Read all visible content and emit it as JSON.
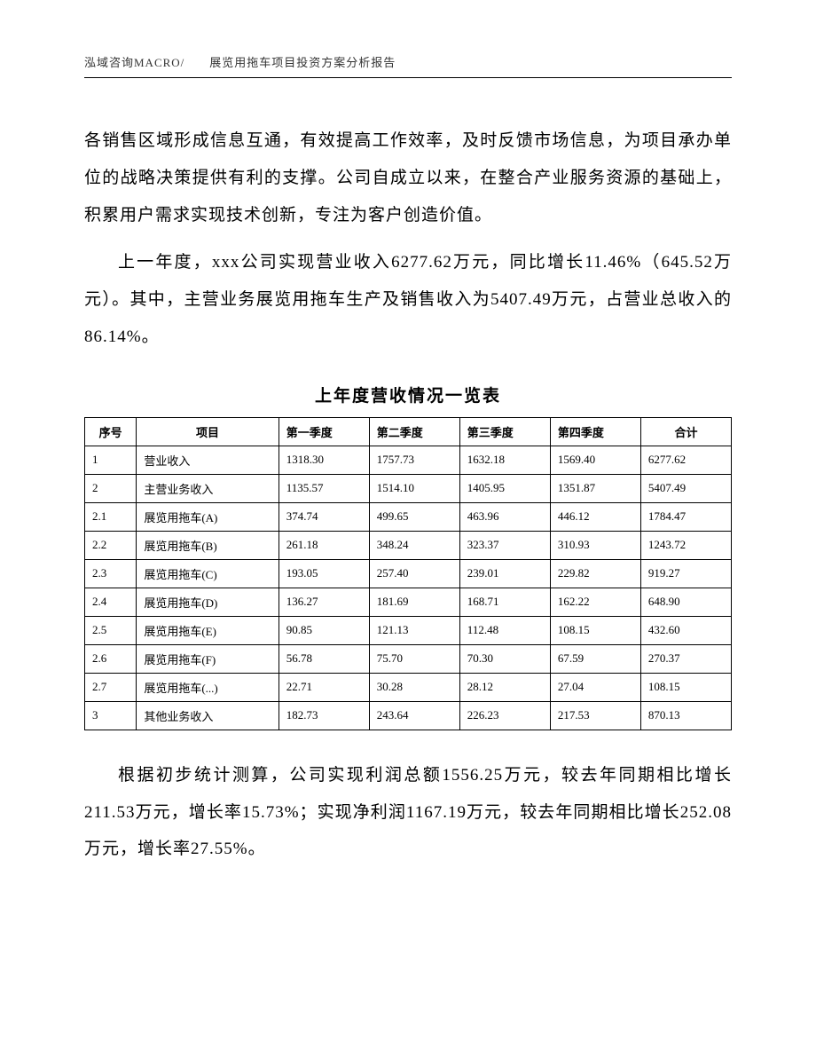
{
  "header": {
    "text": "泓域咨询MACRO/　　展览用拖车项目投资方案分析报告"
  },
  "paragraphs": {
    "p1": "各销售区域形成信息互通，有效提高工作效率，及时反馈市场信息，为项目承办单位的战略决策提供有利的支撑。公司自成立以来，在整合产业服务资源的基础上，积累用户需求实现技术创新，专注为客户创造价值。",
    "p2": "上一年度，xxx公司实现营业收入6277.62万元，同比增长11.46%（645.52万元）。其中，主营业务展览用拖车生产及销售收入为5407.49万元，占营业总收入的86.14%。",
    "p3": "根据初步统计测算，公司实现利润总额1556.25万元，较去年同期相比增长211.53万元，增长率15.73%；实现净利润1167.19万元，较去年同期相比增长252.08万元，增长率27.55%。"
  },
  "table": {
    "title": "上年度营收情况一览表",
    "columns": {
      "seq": "序号",
      "item": "项目",
      "q1": "第一季度",
      "q2": "第二季度",
      "q3": "第三季度",
      "q4": "第四季度",
      "total": "合计"
    },
    "rows": [
      {
        "seq": "1",
        "item": "营业收入",
        "q1": "1318.30",
        "q2": "1757.73",
        "q3": "1632.18",
        "q4": "1569.40",
        "total": "6277.62"
      },
      {
        "seq": "2",
        "item": "主营业务收入",
        "q1": "1135.57",
        "q2": "1514.10",
        "q3": "1405.95",
        "q4": "1351.87",
        "total": "5407.49"
      },
      {
        "seq": "2.1",
        "item": "展览用拖车(A)",
        "q1": "374.74",
        "q2": "499.65",
        "q3": "463.96",
        "q4": "446.12",
        "total": "1784.47"
      },
      {
        "seq": "2.2",
        "item": "展览用拖车(B)",
        "q1": "261.18",
        "q2": "348.24",
        "q3": "323.37",
        "q4": "310.93",
        "total": "1243.72"
      },
      {
        "seq": "2.3",
        "item": "展览用拖车(C)",
        "q1": "193.05",
        "q2": "257.40",
        "q3": "239.01",
        "q4": "229.82",
        "total": "919.27"
      },
      {
        "seq": "2.4",
        "item": "展览用拖车(D)",
        "q1": "136.27",
        "q2": "181.69",
        "q3": "168.71",
        "q4": "162.22",
        "total": "648.90"
      },
      {
        "seq": "2.5",
        "item": "展览用拖车(E)",
        "q1": "90.85",
        "q2": "121.13",
        "q3": "112.48",
        "q4": "108.15",
        "total": "432.60"
      },
      {
        "seq": "2.6",
        "item": "展览用拖车(F)",
        "q1": "56.78",
        "q2": "75.70",
        "q3": "70.30",
        "q4": "67.59",
        "total": "270.37"
      },
      {
        "seq": "2.7",
        "item": "展览用拖车(...)",
        "q1": "22.71",
        "q2": "30.28",
        "q3": "28.12",
        "q4": "27.04",
        "total": "108.15"
      },
      {
        "seq": "3",
        "item": "其他业务收入",
        "q1": "182.73",
        "q2": "243.64",
        "q3": "226.23",
        "q4": "217.53",
        "total": "870.13"
      }
    ]
  }
}
